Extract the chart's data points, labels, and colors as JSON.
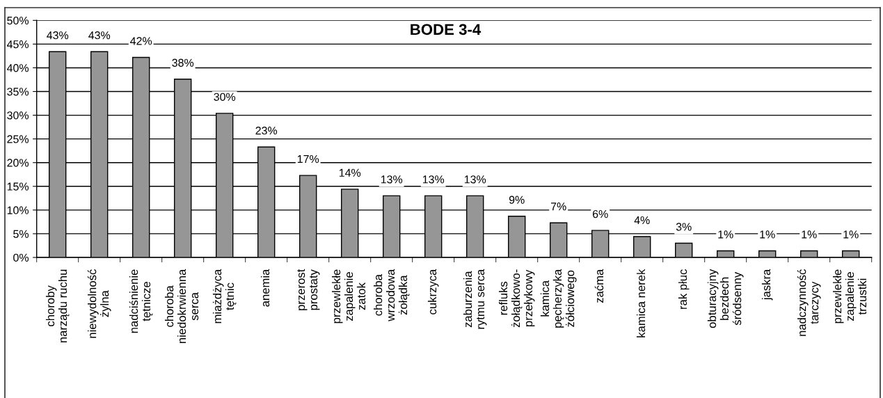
{
  "chart_data": {
    "type": "bar",
    "title": "BODE 3-4",
    "categories": [
      "choroby\nnarządu ruchu",
      "niewydolność\nżylna",
      "nadciśnienie\ntętnicze",
      "choroba\nniedokrwienna\nserca",
      "miażdżyca\ntętnic",
      "anemia",
      "przerost\nprostaty",
      "przewlekłe\nzapalenie\nzatok",
      "choroba\nwrzodowa\nżołądka",
      "cukrzyca",
      "zaburzenia\nrytmu serca",
      "refluks\nżołądkowo-\nprzełykowy",
      "kamica\npęcherzyka\nżółciowego",
      "zaćma",
      "kamica nerek",
      "rak płuc",
      "obturacyjny\nbezdech\nśródsenny",
      "jaskra",
      "nadczynność\ntarczycy",
      "przewlekłe\nzapalenie\ntrzustki"
    ],
    "values": [
      43.4,
      43.4,
      42.2,
      37.6,
      30.4,
      23.3,
      17.3,
      14.4,
      13.0,
      13.0,
      13.0,
      8.7,
      7.3,
      5.7,
      4.4,
      3.0,
      1.4,
      1.4,
      1.4,
      1.4
    ],
    "value_labels": [
      "43%",
      "43%",
      "42%",
      "38%",
      "30%",
      "23%",
      "17%",
      "14%",
      "13%",
      "13%",
      "13%",
      "9%",
      "7%",
      "6%",
      "4%",
      "3%",
      "1%",
      "1%",
      "1%",
      "1%"
    ],
    "color": "#969696",
    "ylim": [
      0,
      50
    ],
    "yticks": [
      {
        "value": 0,
        "label": "0%"
      },
      {
        "value": 5,
        "label": "5%"
      },
      {
        "value": 10,
        "label": "10%"
      },
      {
        "value": 15,
        "label": "15%"
      },
      {
        "value": 20,
        "label": "20%"
      },
      {
        "value": 25,
        "label": "25%"
      },
      {
        "value": 30,
        "label": "30%"
      },
      {
        "value": 35,
        "label": "35%"
      },
      {
        "value": 40,
        "label": "40%"
      },
      {
        "value": 45,
        "label": "45%"
      },
      {
        "value": 50,
        "label": "50%"
      }
    ],
    "grid": "y"
  }
}
